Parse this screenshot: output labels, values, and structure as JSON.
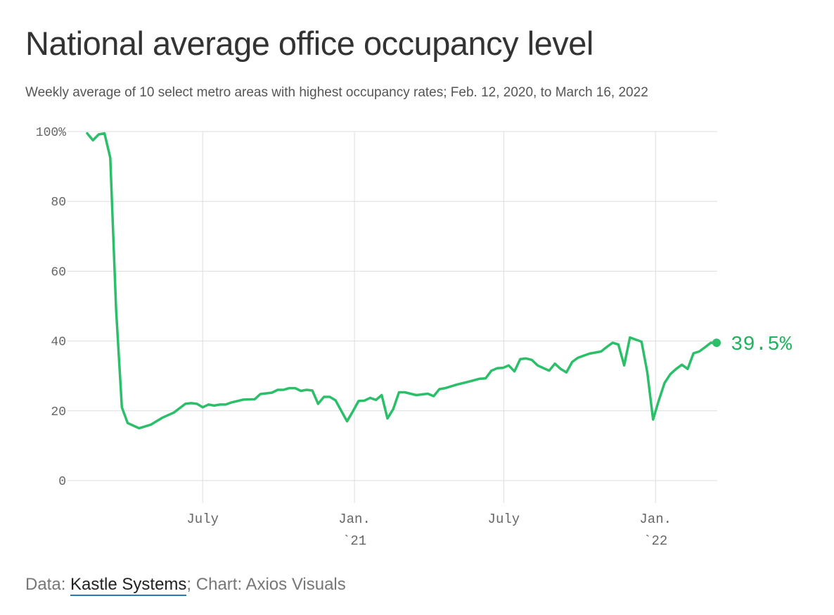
{
  "title": "National average office occupancy level",
  "subtitle": "Weekly average of 10 select metro areas with highest occupancy rates; Feb. 12, 2020, to March 16, 2022",
  "footer": {
    "prefix": "Data: ",
    "source_link": "Kastle Systems",
    "suffix": "; Chart: Axios Visuals"
  },
  "colors": {
    "line": "#2bbf6a",
    "label": "#22b35f",
    "grid": "#dddddd",
    "tick_text": "#666666"
  },
  "chart_data": {
    "type": "line",
    "title": "National average office occupancy level",
    "xlabel": "",
    "ylabel": "",
    "ylim": [
      0,
      100
    ],
    "yticks": [
      {
        "value": 100,
        "label": "100%"
      },
      {
        "value": 80,
        "label": "80"
      },
      {
        "value": 60,
        "label": "60"
      },
      {
        "value": 40,
        "label": "40"
      },
      {
        "value": 20,
        "label": "20"
      },
      {
        "value": 0,
        "label": "0"
      }
    ],
    "xlim": [
      "2020-02-12",
      "2022-03-16"
    ],
    "xticks": [
      {
        "date": "2020-07-01",
        "line1": "July",
        "line2": ""
      },
      {
        "date": "2021-01-01",
        "line1": "Jan.",
        "line2": "`21"
      },
      {
        "date": "2021-07-01",
        "line1": "July",
        "line2": ""
      },
      {
        "date": "2022-01-01",
        "line1": "Jan.",
        "line2": "`22"
      }
    ],
    "grid": true,
    "end_label": "39.5%",
    "series": [
      {
        "x": [
          "2020-02-12",
          "2020-02-19",
          "2020-02-26",
          "2020-03-04",
          "2020-03-11",
          "2020-03-18",
          "2020-03-25",
          "2020-04-01",
          "2020-04-15",
          "2020-04-29",
          "2020-05-13",
          "2020-05-27",
          "2020-06-10",
          "2020-06-17",
          "2020-06-24",
          "2020-07-01",
          "2020-07-08",
          "2020-07-15",
          "2020-07-22",
          "2020-07-29",
          "2020-08-05",
          "2020-08-19",
          "2020-09-02",
          "2020-09-09",
          "2020-09-16",
          "2020-09-23",
          "2020-09-30",
          "2020-10-07",
          "2020-10-14",
          "2020-10-21",
          "2020-10-28",
          "2020-11-04",
          "2020-11-11",
          "2020-11-18",
          "2020-11-25",
          "2020-12-02",
          "2020-12-09",
          "2020-12-16",
          "2020-12-23",
          "2020-12-30",
          "2021-01-06",
          "2021-01-13",
          "2021-01-20",
          "2021-01-27",
          "2021-02-03",
          "2021-02-10",
          "2021-02-17",
          "2021-02-24",
          "2021-03-03",
          "2021-03-17",
          "2021-03-31",
          "2021-04-07",
          "2021-04-14",
          "2021-04-21",
          "2021-05-05",
          "2021-05-19",
          "2021-06-02",
          "2021-06-09",
          "2021-06-16",
          "2021-06-23",
          "2021-06-30",
          "2021-07-07",
          "2021-07-14",
          "2021-07-21",
          "2021-07-28",
          "2021-08-04",
          "2021-08-11",
          "2021-08-25",
          "2021-09-01",
          "2021-09-08",
          "2021-09-15",
          "2021-09-22",
          "2021-09-29",
          "2021-10-13",
          "2021-10-27",
          "2021-11-03",
          "2021-11-10",
          "2021-11-17",
          "2021-11-24",
          "2021-12-01",
          "2021-12-15",
          "2021-12-22",
          "2021-12-29",
          "2022-01-05",
          "2022-01-12",
          "2022-01-19",
          "2022-01-26",
          "2022-02-02",
          "2022-02-09",
          "2022-02-16",
          "2022-02-23",
          "2022-03-02",
          "2022-03-09",
          "2022-03-16"
        ],
        "y": [
          99.5,
          97.5,
          99.2,
          99.5,
          92.5,
          49,
          21,
          16.5,
          15,
          16,
          18,
          19.5,
          22,
          22.2,
          22,
          21,
          21.8,
          21.5,
          21.8,
          21.8,
          22.4,
          23.2,
          23.3,
          24.8,
          25,
          25.2,
          26,
          26,
          26.5,
          26.5,
          25.7,
          26,
          25.8,
          22,
          24,
          24,
          23,
          20,
          17,
          19.8,
          22.8,
          22.9,
          23.7,
          23.1,
          24.5,
          17.8,
          20.5,
          25.3,
          25.3,
          24.5,
          24.9,
          24.2,
          26.2,
          26.5,
          27.5,
          28.3,
          29.2,
          29.3,
          31.5,
          32.2,
          32.3,
          33,
          31.3,
          34.8,
          35,
          34.6,
          33,
          31.5,
          33.5,
          32,
          31,
          34,
          35.2,
          36.4,
          37,
          38.3,
          39.5,
          39,
          33,
          41,
          39.8,
          31,
          17.5,
          23,
          28,
          30.5,
          32,
          33.2,
          32,
          36.5,
          37,
          38.2,
          39.5,
          39.5
        ]
      }
    ]
  }
}
